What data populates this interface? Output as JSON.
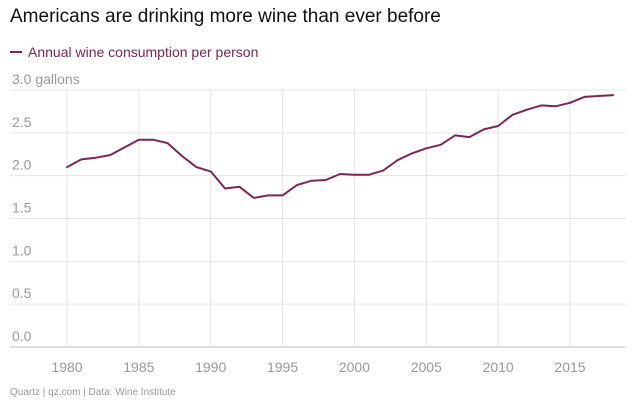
{
  "title": "Americans are drinking more wine than ever before",
  "source": "Quartz | qz.com | Data: Wine Institute",
  "chart_data": {
    "type": "line",
    "title": "Americans are drinking more wine than ever before",
    "xlabel": "",
    "ylabel": "",
    "xlim": [
      1980,
      2018
    ],
    "ylim": [
      0,
      3.0
    ],
    "x_ticks": [
      "1980",
      "1985",
      "1990",
      "1995",
      "2000",
      "2005",
      "2010",
      "2015"
    ],
    "y_ticks": [
      "0.0",
      "0.5",
      "1.0",
      "1.5",
      "2.0",
      "2.5",
      "3.0 gallons"
    ],
    "grid": true,
    "legend_position": "top-left",
    "series": [
      {
        "name": "Annual wine consumption per person",
        "color": "#7b2752",
        "x": [
          1980,
          1981,
          1982,
          1983,
          1984,
          1985,
          1986,
          1987,
          1988,
          1989,
          1990,
          1991,
          1992,
          1993,
          1994,
          1995,
          1996,
          1997,
          1998,
          1999,
          2000,
          2001,
          2002,
          2003,
          2004,
          2005,
          2006,
          2007,
          2008,
          2009,
          2010,
          2011,
          2012,
          2013,
          2014,
          2015,
          2016,
          2017,
          2018
        ],
        "y": [
          2.1,
          2.19,
          2.21,
          2.24,
          2.33,
          2.42,
          2.42,
          2.38,
          2.23,
          2.1,
          2.05,
          1.85,
          1.87,
          1.74,
          1.77,
          1.77,
          1.89,
          1.94,
          1.95,
          2.02,
          2.01,
          2.01,
          2.06,
          2.18,
          2.26,
          2.32,
          2.36,
          2.47,
          2.45,
          2.54,
          2.58,
          2.71,
          2.77,
          2.82,
          2.81,
          2.85,
          2.92,
          2.93,
          2.94
        ]
      }
    ]
  }
}
